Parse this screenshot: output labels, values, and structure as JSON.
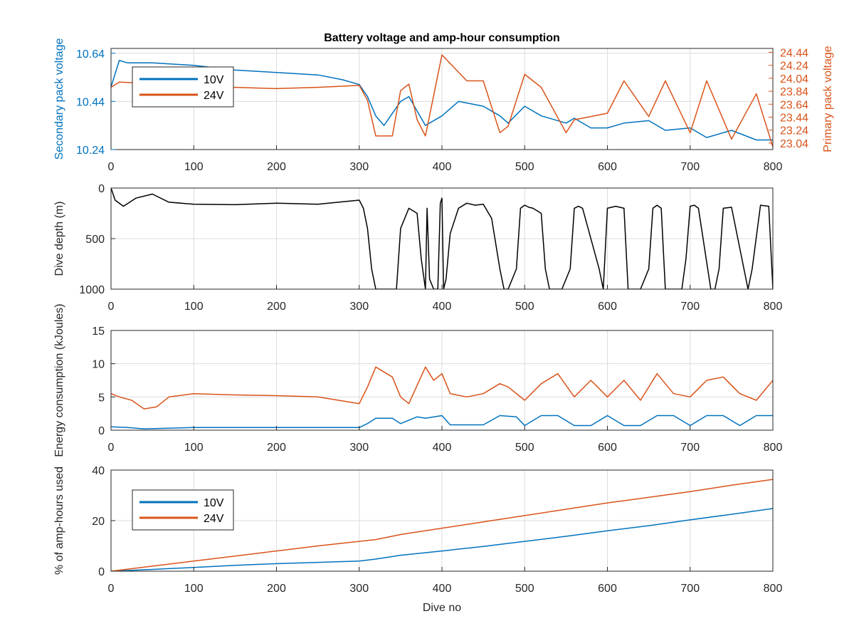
{
  "chart_data": [
    {
      "type": "line",
      "title": "Battery voltage and amp-hour consumption",
      "xlabel": "",
      "xlim": [
        0,
        800
      ],
      "xticks": [
        0,
        100,
        200,
        300,
        400,
        500,
        600,
        700,
        800
      ],
      "ylabel_left": "Secondary pack voltage",
      "ylim_left": [
        10.24,
        10.66
      ],
      "yticks_left": [
        "10.24",
        "10.44",
        "10.64"
      ],
      "ylabel_right": "Primary pack voltage",
      "ylim_right": [
        22.94,
        24.5
      ],
      "yticks_right": [
        "23.04",
        "23.24",
        "23.44",
        "23.64",
        "23.84",
        "24.04",
        "24.24",
        "24.44"
      ],
      "grid": true,
      "legend_placement": "top-left",
      "series": [
        {
          "name": "10V",
          "axis": "left",
          "color": "#0072BD",
          "x": [
            0,
            10,
            20,
            50,
            100,
            150,
            200,
            250,
            280,
            300,
            310,
            320,
            330,
            350,
            360,
            370,
            380,
            400,
            420,
            450,
            470,
            480,
            500,
            520,
            550,
            560,
            580,
            600,
            620,
            650,
            670,
            700,
            720,
            750,
            780,
            800
          ],
          "values": [
            10.5,
            10.61,
            10.6,
            10.6,
            10.59,
            10.57,
            10.56,
            10.55,
            10.53,
            10.51,
            10.46,
            10.38,
            10.34,
            10.44,
            10.46,
            10.4,
            10.34,
            10.38,
            10.44,
            10.42,
            10.38,
            10.35,
            10.42,
            10.38,
            10.35,
            10.37,
            10.33,
            10.33,
            10.35,
            10.36,
            10.32,
            10.33,
            10.29,
            10.32,
            10.28,
            10.28
          ]
        },
        {
          "name": "24V",
          "axis": "right",
          "color": "#D95319",
          "x": [
            0,
            10,
            30,
            60,
            100,
            150,
            200,
            250,
            300,
            310,
            320,
            340,
            350,
            360,
            370,
            380,
            400,
            430,
            450,
            470,
            480,
            500,
            520,
            550,
            560,
            580,
            600,
            620,
            650,
            670,
            700,
            720,
            750,
            780,
            800
          ],
          "values": [
            23.9,
            23.98,
            23.97,
            23.93,
            23.91,
            23.9,
            23.88,
            23.9,
            23.93,
            23.7,
            23.15,
            23.15,
            23.85,
            23.95,
            23.4,
            23.15,
            24.4,
            24.0,
            24.0,
            23.2,
            23.3,
            24.1,
            23.9,
            23.2,
            23.4,
            23.45,
            23.5,
            24.0,
            23.45,
            24.0,
            23.2,
            24.0,
            23.1,
            23.8,
            22.98
          ]
        }
      ]
    },
    {
      "type": "line",
      "title": "",
      "xlabel": "",
      "xlim": [
        0,
        800
      ],
      "xticks": [
        0,
        100,
        200,
        300,
        400,
        500,
        600,
        700,
        800
      ],
      "ylabel": "Dive depth (m)",
      "ylim": [
        0,
        1000
      ],
      "y_reversed": true,
      "yticks": [
        "0",
        "500",
        "1000"
      ],
      "grid": true,
      "series": [
        {
          "color": "#000000",
          "x": [
            0,
            5,
            15,
            30,
            50,
            70,
            100,
            150,
            200,
            250,
            300,
            305,
            310,
            315,
            320,
            345,
            350,
            360,
            370,
            375,
            380,
            382,
            385,
            390,
            395,
            398,
            400,
            402,
            405,
            410,
            420,
            430,
            440,
            450,
            460,
            470,
            475,
            480,
            490,
            495,
            500,
            505,
            510,
            520,
            525,
            530,
            545,
            555,
            560,
            565,
            570,
            590,
            595,
            600,
            610,
            620,
            625,
            640,
            650,
            655,
            660,
            665,
            670,
            690,
            695,
            700,
            705,
            710,
            725,
            730,
            735,
            740,
            750,
            770,
            775,
            785,
            795,
            800
          ],
          "values": [
            0,
            120,
            180,
            100,
            60,
            140,
            160,
            165,
            150,
            160,
            120,
            200,
            400,
            800,
            1000,
            1000,
            400,
            200,
            250,
            700,
            1000,
            200,
            900,
            1000,
            1000,
            150,
            100,
            1000,
            900,
            450,
            200,
            150,
            170,
            160,
            300,
            800,
            1000,
            1000,
            800,
            200,
            170,
            190,
            200,
            250,
            800,
            1000,
            1000,
            800,
            200,
            180,
            200,
            800,
            1000,
            200,
            180,
            200,
            1000,
            1000,
            800,
            200,
            170,
            200,
            1000,
            1000,
            700,
            180,
            170,
            200,
            1000,
            1000,
            800,
            200,
            190,
            1000,
            800,
            170,
            180,
            1000
          ]
        }
      ]
    },
    {
      "type": "line",
      "title": "",
      "xlabel": "",
      "xlim": [
        0,
        800
      ],
      "xticks": [
        0,
        100,
        200,
        300,
        400,
        500,
        600,
        700,
        800
      ],
      "ylabel": "Energy consumption (kJoules)",
      "ylim": [
        0,
        15
      ],
      "yticks": [
        "0",
        "5",
        "10",
        "15"
      ],
      "grid": true,
      "series": [
        {
          "color": "#D95319",
          "x": [
            0,
            10,
            25,
            40,
            55,
            70,
            100,
            150,
            200,
            250,
            300,
            310,
            320,
            340,
            350,
            360,
            380,
            390,
            400,
            410,
            430,
            450,
            470,
            480,
            500,
            520,
            540,
            560,
            580,
            600,
            620,
            640,
            660,
            680,
            700,
            720,
            740,
            760,
            780,
            800
          ],
          "values": [
            5.5,
            5.0,
            4.5,
            3.2,
            3.5,
            5.0,
            5.5,
            5.3,
            5.2,
            5.0,
            4.0,
            6.5,
            9.5,
            8.0,
            5.0,
            4.0,
            9.5,
            7.5,
            8.5,
            5.5,
            5.0,
            5.5,
            7.0,
            6.5,
            4.5,
            7.0,
            8.5,
            5.0,
            7.5,
            5.0,
            7.5,
            4.5,
            8.5,
            5.5,
            5.0,
            7.5,
            8.0,
            5.5,
            4.5,
            7.5
          ]
        },
        {
          "color": "#0072BD",
          "x": [
            0,
            20,
            40,
            100,
            200,
            300,
            310,
            320,
            340,
            350,
            370,
            380,
            400,
            410,
            450,
            470,
            490,
            500,
            520,
            540,
            560,
            580,
            600,
            620,
            640,
            660,
            680,
            700,
            720,
            740,
            760,
            780,
            800
          ],
          "values": [
            0.5,
            0.4,
            0.2,
            0.4,
            0.4,
            0.4,
            1.0,
            1.8,
            1.8,
            1.0,
            2.0,
            1.8,
            2.2,
            0.8,
            0.8,
            2.2,
            2.0,
            0.7,
            2.2,
            2.2,
            0.7,
            0.7,
            2.2,
            0.7,
            0.7,
            2.2,
            2.2,
            0.7,
            2.2,
            2.2,
            0.7,
            2.2,
            2.2
          ]
        }
      ]
    },
    {
      "type": "line",
      "title": "",
      "xlabel": "Dive no",
      "xlim": [
        0,
        800
      ],
      "xticks": [
        0,
        100,
        200,
        300,
        400,
        500,
        600,
        700,
        800
      ],
      "ylabel": "% of amp-hours used",
      "ylim": [
        0,
        40
      ],
      "yticks": [
        "0",
        "20",
        "40"
      ],
      "grid": true,
      "legend_placement": "top-left",
      "series": [
        {
          "name": "10V",
          "color": "#0072BD",
          "x": [
            0,
            50,
            100,
            150,
            200,
            250,
            300,
            320,
            350,
            400,
            450,
            500,
            550,
            600,
            650,
            700,
            750,
            800
          ],
          "values": [
            0,
            0.7,
            1.5,
            2.3,
            3.0,
            3.5,
            4.0,
            4.8,
            6.3,
            8.0,
            9.8,
            11.8,
            13.8,
            16.0,
            18.0,
            20.3,
            22.5,
            24.8
          ]
        },
        {
          "name": "24V",
          "color": "#D95319",
          "x": [
            0,
            50,
            100,
            150,
            200,
            250,
            300,
            320,
            350,
            400,
            450,
            500,
            550,
            600,
            650,
            700,
            750,
            800
          ],
          "values": [
            0,
            2.0,
            4.0,
            6.0,
            8.0,
            10.0,
            11.8,
            12.5,
            14.5,
            17.0,
            19.5,
            22.0,
            24.5,
            27.0,
            29.2,
            31.5,
            34.0,
            36.3
          ]
        }
      ]
    }
  ]
}
